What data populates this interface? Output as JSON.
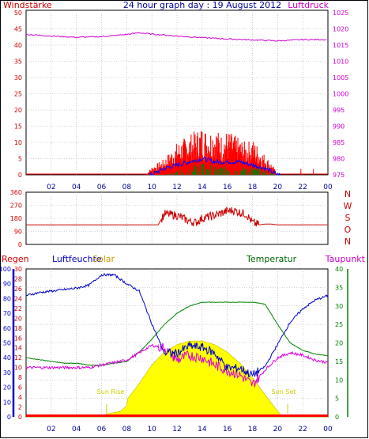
{
  "header": {
    "title": "24 hour graph day : 19 August 2012",
    "left_label": "Windstärke",
    "right_label": "Luftdruck"
  },
  "colors": {
    "wind": "#ff0000",
    "gust": "#ff0000",
    "wind_avg": "#0000ff",
    "wind_min": "#008000",
    "pressure": "#cc00cc",
    "direction": "#cc0000",
    "humidity": "#0000cc",
    "temperature": "#008000",
    "dewpoint": "#dd00dd",
    "solar": "#ffff00",
    "solar_edge": "#cccc00",
    "rain": "#ff0000",
    "axis_left_red": "#cc0000",
    "title_blue": "#000099",
    "frame": "#000000",
    "grid": "#aaaaaa"
  },
  "time_axis": {
    "tick_labels": [
      "02",
      "04",
      "06",
      "08",
      "10",
      "12",
      "14",
      "16",
      "18",
      "20",
      "22",
      "00"
    ],
    "start_hour": 0,
    "end_hour": 24
  },
  "panel1": {
    "left_ticks": [
      "50",
      "45",
      "40",
      "35",
      "30",
      "25",
      "20",
      "15",
      "10",
      "5",
      "0"
    ],
    "right_ticks": [
      "1025",
      "1020",
      "1015",
      "1010",
      "1005",
      "1000",
      "995",
      "990",
      "985",
      "980",
      "975"
    ]
  },
  "panel2": {
    "left_ticks": [
      "360",
      "270",
      "180",
      "90",
      "0"
    ],
    "compass": [
      "N",
      "W",
      "S",
      "O",
      "N"
    ]
  },
  "panel3": {
    "label_rain": "Regen",
    "label_humidity": "Luftfeuchte",
    "label_solar": "Solar",
    "label_temperature": "Temperatur",
    "label_dewpoint": "Taupunkt",
    "sunrise_label": "Sun Rise",
    "sunset_label": "Sun Set",
    "rain_ticks": [
      "100",
      "90",
      "80",
      "70",
      "60",
      "50",
      "40",
      "30",
      "20",
      "10",
      "0"
    ],
    "humidity_ticks": [
      "30",
      "28",
      "26",
      "24",
      "22",
      "20",
      "18",
      "16",
      "14",
      "12",
      "10",
      "8",
      "6",
      "4",
      "2",
      "0"
    ],
    "temp_ticks": [
      "40",
      "35",
      "30",
      "25",
      "20",
      "15",
      "10",
      "5",
      "0"
    ]
  },
  "chart_data": [
    {
      "type": "line",
      "name": "wind and pressure",
      "x_unit": "hour",
      "ylim_left": [
        0,
        50
      ],
      "ylim_right": [
        975,
        1025
      ],
      "series": [
        {
          "name": "Windstärke",
          "kind": "gust",
          "x": [
            0,
            9.5,
            10,
            10.5,
            11,
            11.5,
            12,
            12.5,
            13,
            13.5,
            14,
            14.5,
            15,
            15.5,
            16,
            16.5,
            17,
            17.5,
            18,
            18.5,
            19,
            19.5,
            20,
            22,
            24
          ],
          "values": [
            0,
            0,
            2,
            3,
            4,
            6,
            8,
            9,
            10,
            11,
            12,
            11,
            12,
            10,
            11,
            10,
            9,
            8,
            9,
            7,
            5,
            3,
            0,
            0,
            0
          ]
        },
        {
          "name": "Windstärke avg",
          "kind": "avg",
          "x": [
            0,
            10,
            11,
            12,
            13,
            14,
            15,
            16,
            17,
            18,
            19,
            20,
            24
          ],
          "values": [
            0,
            0,
            2,
            3,
            4,
            5,
            4,
            4,
            4,
            3,
            2,
            0,
            0
          ]
        },
        {
          "name": "Windstärke min",
          "kind": "min",
          "x": [
            0,
            11,
            12,
            13,
            14,
            15,
            16,
            17,
            18,
            19,
            20,
            24
          ],
          "values": [
            0,
            0,
            1,
            2,
            3,
            2,
            2,
            2,
            2,
            1,
            0,
            0
          ]
        },
        {
          "name": "Luftdruck",
          "kind": "pressure",
          "x": [
            0,
            2,
            4,
            6,
            8,
            9,
            10,
            12,
            14,
            16,
            18,
            20,
            22,
            24
          ],
          "values": [
            1018.3,
            1017.8,
            1017.4,
            1017.6,
            1018.3,
            1018.8,
            1018.4,
            1017.8,
            1017.3,
            1016.9,
            1016.6,
            1016.3,
            1016.7,
            1016.7
          ]
        }
      ]
    },
    {
      "type": "line",
      "name": "wind direction",
      "x_unit": "hour",
      "ylim": [
        0,
        360
      ],
      "series": [
        {
          "name": "direction",
          "x": [
            0,
            10.5,
            11,
            12,
            13,
            13.5,
            14,
            15,
            16,
            16.5,
            17,
            17.5,
            18,
            18.5,
            19,
            19.5,
            20,
            24
          ],
          "values": [
            135,
            135,
            210,
            200,
            160,
            150,
            180,
            200,
            230,
            235,
            220,
            210,
            150,
            135,
            140,
            140,
            135,
            135
          ]
        }
      ]
    },
    {
      "type": "line",
      "name": "humidity temperature solar",
      "x_unit": "hour",
      "ylim_humidity": [
        0,
        100
      ],
      "ylim_left": [
        0,
        30
      ],
      "ylim_temp": [
        0,
        40
      ],
      "series": [
        {
          "name": "Luftfeuchte",
          "axis": "rain",
          "x": [
            0,
            1,
            2,
            3,
            4,
            5,
            6,
            7,
            8,
            9,
            10,
            11,
            12,
            13,
            14,
            15,
            16,
            17,
            18,
            19,
            20,
            21,
            22,
            23,
            24
          ],
          "values": [
            82,
            84,
            85,
            86,
            87,
            89,
            96,
            96,
            90,
            85,
            63,
            43,
            43,
            48,
            47,
            43,
            33,
            33,
            28,
            34,
            49,
            64,
            73,
            79,
            82
          ]
        },
        {
          "name": "Temperatur",
          "axis": "temp",
          "x": [
            0,
            1,
            2,
            3,
            4,
            5,
            6,
            7,
            8,
            9,
            10,
            11,
            12,
            13,
            14,
            15,
            16,
            17,
            18,
            19,
            20,
            21,
            22,
            23,
            24
          ],
          "values": [
            16,
            15.5,
            15,
            14.5,
            14.5,
            14,
            14,
            14.5,
            15,
            17.5,
            21,
            25,
            28,
            30,
            31,
            31,
            31,
            31,
            31,
            30.5,
            25,
            20,
            18,
            17,
            16.5
          ]
        },
        {
          "name": "Taupunkt",
          "axis": "humidity",
          "x": [
            0,
            1,
            2,
            3,
            4,
            5,
            6,
            7,
            8,
            9,
            10,
            11,
            12,
            13,
            14,
            15,
            16,
            17,
            18,
            19,
            20,
            21,
            22,
            23,
            24
          ],
          "values": [
            10,
            10,
            10,
            10,
            10,
            10,
            10.5,
            11,
            11.5,
            13,
            14.5,
            14,
            11.5,
            12.5,
            12,
            10.5,
            9.5,
            8.5,
            6.5,
            9.5,
            12,
            13,
            12.5,
            11.5,
            11
          ]
        },
        {
          "name": "Solar",
          "axis": "temp",
          "x": [
            0,
            5.6,
            6.5,
            7.5,
            8,
            8.1,
            9,
            10,
            11,
            12,
            13,
            14,
            15,
            16,
            17,
            18,
            19,
            20,
            20.4,
            24
          ],
          "values": [
            0,
            0,
            0.8,
            1.5,
            3,
            5,
            9,
            14,
            17.5,
            19.5,
            20.5,
            20.5,
            19.5,
            17.5,
            14.5,
            10.5,
            6,
            1.5,
            0,
            0
          ]
        },
        {
          "name": "Regen",
          "axis": "rain",
          "x": [
            0,
            24
          ],
          "values": [
            0,
            0
          ]
        }
      ]
    }
  ]
}
